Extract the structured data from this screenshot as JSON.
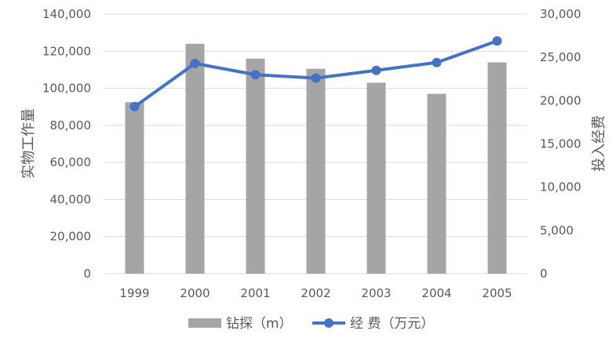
{
  "chart_data": {
    "type": "bar+line",
    "categories": [
      "1999",
      "2000",
      "2001",
      "2002",
      "2003",
      "2004",
      "2005"
    ],
    "series": [
      {
        "name": "钻探（m）",
        "type": "bar",
        "axis": "left",
        "color": "#a5a5a5",
        "values": [
          92500,
          124000,
          116000,
          110500,
          103000,
          97000,
          114000
        ]
      },
      {
        "name": "经 费（万元）",
        "type": "line",
        "axis": "right",
        "color": "#4472c4",
        "values": [
          19300,
          24300,
          23000,
          22600,
          23500,
          24400,
          26900
        ]
      }
    ],
    "ylabel_left": "实物工作量",
    "ylabel_right": "投入经费",
    "ylim_left": [
      0,
      140000
    ],
    "ylim_right": [
      0,
      30000
    ],
    "yticks_left": [
      "0",
      "20,000",
      "40,000",
      "60,000",
      "80,000",
      "100,000",
      "120,000",
      "140,000"
    ],
    "yticks_right": [
      "0",
      "5,000",
      "10,000",
      "15,000",
      "20,000",
      "25,000",
      "30,000"
    ],
    "grid": "horizontal",
    "legend": "bottom"
  }
}
